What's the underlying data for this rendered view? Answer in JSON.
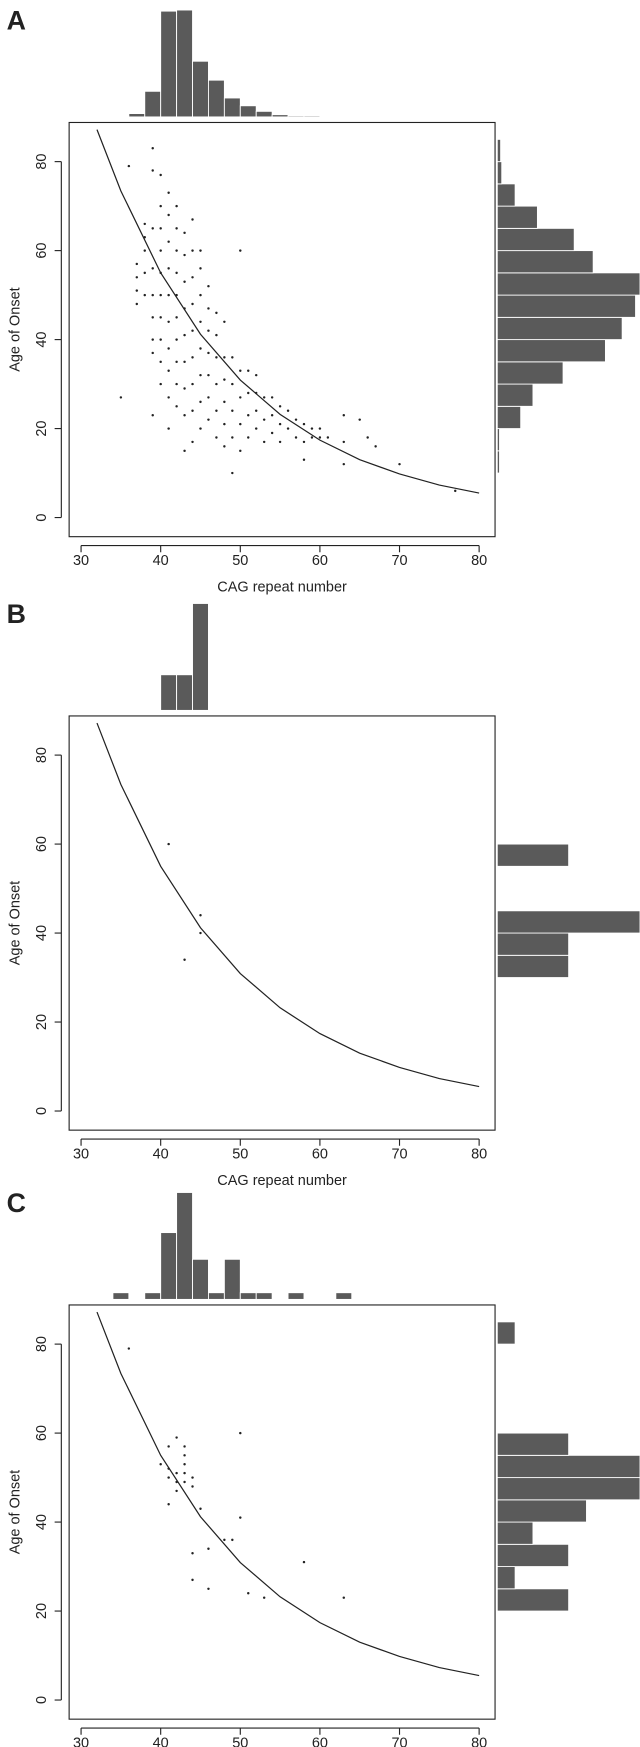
{
  "chart_data": [
    {
      "type": "scatter",
      "panel_label": "A",
      "x_label": "CAG repeat number",
      "y_label": "Age of Onset",
      "xlim": [
        28.5,
        82
      ],
      "ylim": [
        -4.3,
        88.8
      ],
      "xticks": [
        30,
        40,
        50,
        60,
        70,
        80
      ],
      "yticks": [
        0,
        20,
        40,
        60,
        80
      ],
      "point_color": "#222222",
      "bar_color": "#5a5a5a",
      "series": [
        {
          "x": [
            35,
            36,
            37,
            37,
            37,
            37,
            38,
            38,
            38,
            38,
            38,
            39,
            39,
            39,
            39,
            39,
            39,
            39,
            39,
            39,
            40,
            40,
            40,
            40,
            40,
            40,
            40,
            40,
            40,
            40,
            41,
            41,
            41,
            41,
            41,
            41,
            41,
            41,
            41,
            41,
            42,
            42,
            42,
            42,
            42,
            42,
            42,
            42,
            42,
            42,
            43,
            43,
            43,
            43,
            43,
            43,
            43,
            43,
            43,
            44,
            44,
            44,
            44,
            44,
            44,
            44,
            44,
            44,
            45,
            45,
            45,
            45,
            45,
            45,
            45,
            45,
            46,
            46,
            46,
            46,
            46,
            46,
            46,
            47,
            47,
            47,
            47,
            47,
            47,
            48,
            48,
            48,
            48,
            48,
            48,
            49,
            49,
            49,
            49,
            49,
            50,
            50,
            50,
            50,
            50,
            51,
            51,
            51,
            51,
            52,
            52,
            52,
            52,
            53,
            53,
            53,
            54,
            54,
            54,
            55,
            55,
            55,
            56,
            56,
            57,
            57,
            58,
            58,
            58,
            59,
            59,
            60,
            60,
            61,
            63,
            63,
            63,
            65,
            66,
            67,
            70,
            77
          ],
          "values": [
            27,
            79,
            48,
            51,
            54,
            57,
            50,
            55,
            60,
            63,
            66,
            23,
            37,
            40,
            45,
            50,
            56,
            65,
            78,
            83,
            30,
            35,
            40,
            45,
            50,
            55,
            60,
            65,
            70,
            77,
            20,
            27,
            33,
            38,
            44,
            50,
            56,
            62,
            68,
            73,
            25,
            30,
            35,
            40,
            45,
            50,
            55,
            60,
            65,
            70,
            15,
            23,
            29,
            35,
            41,
            47,
            53,
            59,
            64,
            17,
            24,
            30,
            36,
            42,
            48,
            54,
            60,
            67,
            20,
            26,
            32,
            38,
            44,
            50,
            56,
            60,
            22,
            27,
            32,
            37,
            42,
            47,
            52,
            18,
            24,
            30,
            36,
            41,
            46,
            16,
            21,
            26,
            31,
            36,
            44,
            10,
            18,
            24,
            30,
            36,
            15,
            21,
            27,
            33,
            60,
            18,
            23,
            28,
            33,
            20,
            24,
            28,
            32,
            17,
            22,
            27,
            19,
            23,
            27,
            17,
            21,
            25,
            20,
            24,
            18,
            22,
            13,
            17,
            21,
            18,
            20,
            18,
            20,
            18,
            12,
            17,
            23,
            22,
            18,
            16,
            12,
            6
          ]
        }
      ],
      "curve": {
        "x": [
          32,
          35,
          40,
          45,
          50,
          55,
          60,
          65,
          70,
          75,
          80
        ],
        "values": [
          87.2,
          73.4,
          55,
          41.2,
          30.9,
          23.2,
          17.4,
          13.0,
          9.8,
          7.3,
          5.5
        ]
      },
      "x_hist": {
        "bins": [
          36,
          38,
          40,
          42,
          44,
          46,
          48,
          50,
          52,
          54,
          56,
          58,
          60,
          62,
          64,
          66
        ],
        "counts": [
          3,
          23,
          95,
          96,
          50,
          33,
          17,
          10,
          5,
          2,
          1,
          1,
          0.5,
          0,
          0.5
        ]
      },
      "y_hist": {
        "bins": [
          10,
          15,
          20,
          25,
          30,
          35,
          40,
          45,
          50,
          55,
          60,
          65,
          70,
          75,
          80,
          85
        ],
        "counts": [
          2,
          2,
          21,
          32,
          59,
          97,
          112,
          124,
          128,
          86,
          69,
          36,
          16,
          4,
          3
        ]
      }
    },
    {
      "type": "scatter",
      "panel_label": "B",
      "x_label": "CAG repeat number",
      "y_label": "Age of Onset",
      "xlim": [
        28.5,
        82
      ],
      "ylim": [
        -4.3,
        88.8
      ],
      "xticks": [
        30,
        40,
        50,
        60,
        70,
        80
      ],
      "yticks": [
        0,
        20,
        40,
        60,
        80
      ],
      "point_color": "#222222",
      "bar_color": "#5a5a5a",
      "series": [
        {
          "x": [
            41,
            45,
            45,
            43
          ],
          "values": [
            60,
            44,
            40,
            34
          ]
        }
      ],
      "curve": {
        "x": [
          32,
          35,
          40,
          45,
          50,
          55,
          60,
          65,
          70,
          75,
          80
        ],
        "values": [
          87.2,
          73.4,
          55,
          41.2,
          30.9,
          23.2,
          17.4,
          13.0,
          9.8,
          7.3,
          5.5
        ]
      },
      "x_hist": {
        "bins": [
          40,
          42,
          44,
          46
        ],
        "counts": [
          1,
          1,
          3
        ]
      },
      "y_hist": {
        "bins": [
          30,
          35,
          40,
          45,
          50,
          55,
          60
        ],
        "counts": [
          1,
          1,
          2,
          0,
          0,
          1
        ]
      }
    },
    {
      "type": "scatter",
      "panel_label": "C",
      "y_label": "Age of Onset",
      "xlim": [
        28.5,
        82
      ],
      "ylim": [
        -4.3,
        88.8
      ],
      "xticks": [
        30,
        40,
        50,
        60,
        70,
        80
      ],
      "yticks": [
        0,
        20,
        40,
        60,
        80
      ],
      "point_color": "#222222",
      "bar_color": "#5a5a5a",
      "series": [
        {
          "x": [
            36,
            40,
            41,
            41,
            41,
            41,
            42,
            42,
            42,
            42,
            43,
            43,
            43,
            43,
            43,
            44,
            44,
            44,
            44,
            45,
            46,
            46,
            48,
            49,
            50,
            50,
            51,
            53,
            58,
            63
          ],
          "values": [
            79,
            53,
            57,
            52,
            50,
            44,
            59,
            51,
            49,
            47,
            57,
            55,
            53,
            51,
            49,
            50,
            48,
            33,
            27,
            43,
            34,
            25,
            36,
            36,
            60,
            41,
            24,
            23,
            31,
            23
          ]
        }
      ],
      "curve": {
        "x": [
          32,
          35,
          40,
          45,
          50,
          55,
          60,
          65,
          70,
          75,
          80
        ],
        "values": [
          87.2,
          73.4,
          55,
          41.2,
          30.9,
          23.2,
          17.4,
          13.0,
          9.8,
          7.3,
          5.5
        ]
      },
      "x_hist": {
        "bins": [
          34,
          36,
          38,
          40,
          42,
          44,
          46,
          48,
          50,
          52,
          54,
          56,
          58,
          60,
          62,
          64
        ],
        "counts": [
          1,
          0,
          1,
          10,
          16,
          6,
          1,
          6,
          1,
          1,
          0,
          1,
          0,
          0,
          1
        ]
      },
      "y_hist": {
        "bins": [
          20,
          25,
          30,
          35,
          40,
          45,
          50,
          55,
          60,
          65,
          70,
          75,
          80,
          85
        ],
        "counts": [
          4,
          1,
          4,
          2,
          5,
          8,
          8,
          4,
          0,
          0,
          0,
          0,
          1
        ]
      }
    }
  ]
}
